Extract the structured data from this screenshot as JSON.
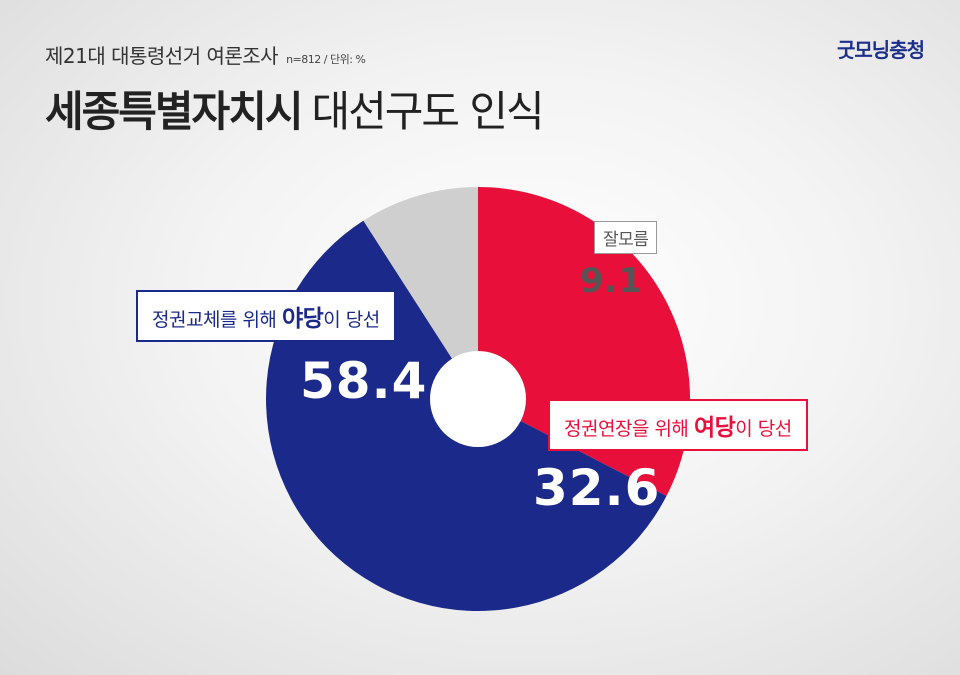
{
  "header": {
    "subtitle": "제21대 대통령선거 여론조사",
    "note": "n=812 / 단위: %",
    "title_strong": "세종특별자치시",
    "title_light": "대선구도 인식",
    "logo": "굿모닝충청"
  },
  "chart_data": {
    "type": "pie",
    "donut": true,
    "start_angle_deg": 0,
    "direction": "clockwise",
    "series": [
      {
        "label_parts": [
          "정권연장을 위해 ",
          "여당",
          "이 당선"
        ],
        "value": 32.6,
        "value_text": "32.6",
        "color": "#e8103a"
      },
      {
        "label_parts": [
          "정권교체를 위해 ",
          "야당",
          "이 당선"
        ],
        "value": 58.4,
        "value_text": "58.4",
        "color": "#1b2a8a"
      },
      {
        "label_parts": [
          "잘모름"
        ],
        "value": 9.1,
        "value_text": "9.1",
        "color": "#cfcfcf"
      }
    ]
  }
}
